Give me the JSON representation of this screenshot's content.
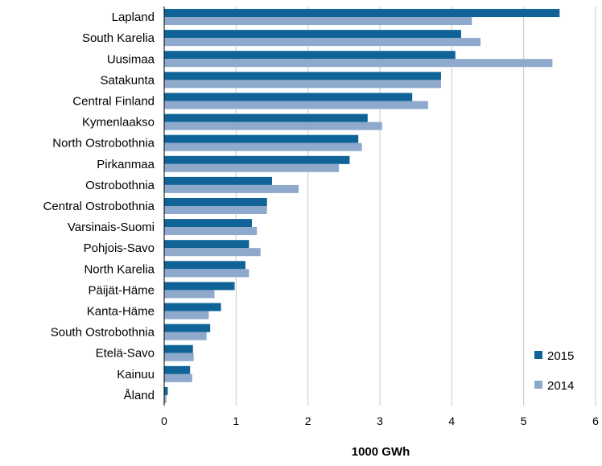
{
  "chart_data": {
    "type": "bar",
    "orientation": "horizontal",
    "title": "",
    "xlabel": "1000 GWh",
    "ylabel": "",
    "xlim": [
      0,
      6
    ],
    "xticks": [
      "0",
      "1",
      "2",
      "3",
      "4",
      "5",
      "6"
    ],
    "grid": "vertical",
    "legend_position": "bottom-right",
    "categories": [
      "Lapland",
      "South Karelia",
      "Uusimaa",
      "Satakunta",
      "Central Finland",
      "Kymenlaakso",
      "North Ostrobothnia",
      "Pirkanmaa",
      "Ostrobothnia",
      "Central Ostrobothnia",
      "Varsinais-Suomi",
      "Pohjois-Savo",
      "North Karelia",
      "Päijät-Häme",
      "Kanta-Häme",
      "South Ostrobothnia",
      "Etelä-Savo",
      "Kainuu",
      "Åland"
    ],
    "series": [
      {
        "name": "2015",
        "color": "#0f6397",
        "values": [
          5.5,
          4.13,
          4.05,
          3.85,
          3.45,
          2.83,
          2.7,
          2.58,
          1.5,
          1.43,
          1.22,
          1.18,
          1.13,
          0.98,
          0.79,
          0.64,
          0.4,
          0.36,
          0.05
        ]
      },
      {
        "name": "2014",
        "color": "#8ea9cc",
        "values": [
          4.28,
          4.4,
          5.4,
          3.85,
          3.67,
          3.03,
          2.75,
          2.43,
          1.87,
          1.43,
          1.29,
          1.34,
          1.18,
          0.7,
          0.62,
          0.59,
          0.41,
          0.39,
          0.03
        ]
      }
    ]
  }
}
